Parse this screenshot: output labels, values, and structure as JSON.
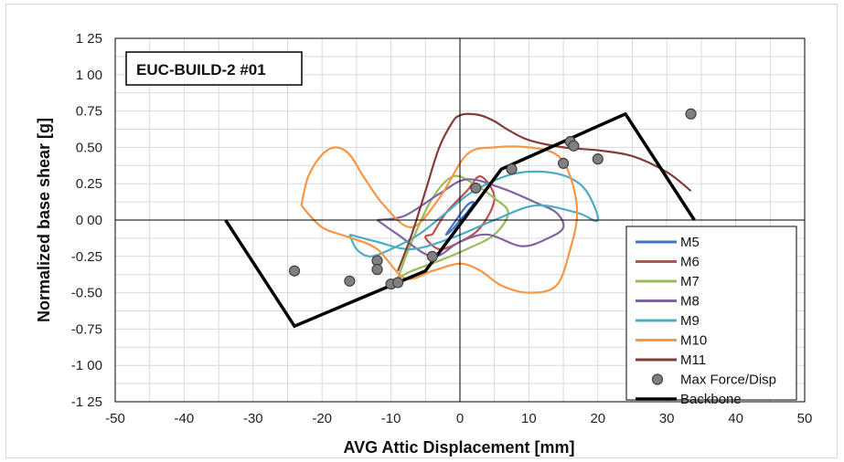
{
  "chart_data": {
    "type": "line",
    "title": "EUC-BUILD-2 #01",
    "xlabel": "AVG Attic Displacement [mm]",
    "ylabel": "Normalized base shear [g]",
    "xlim": [
      -50,
      50
    ],
    "ylim": [
      -1.25,
      1.25
    ],
    "x_ticks": [
      "-50",
      "-40",
      "-30",
      "-20",
      "-10",
      "0",
      "10",
      "20",
      "30",
      "40",
      "50"
    ],
    "y_ticks": [
      "1 25",
      "1 00",
      "0.75",
      "0.50",
      "0.25",
      "0 00",
      "-0.25",
      "-0.50",
      "-0.75",
      "-1 00",
      "-1 25"
    ],
    "grid": true,
    "legend_position": "bottom-right",
    "series": [
      {
        "name": "M5",
        "kind": "hysteresis",
        "color": "#4472c4",
        "x": [
          0,
          1,
          2,
          1,
          -1,
          -2,
          -1,
          0
        ],
        "y": [
          0,
          0.05,
          0.12,
          0.1,
          -0.03,
          -0.1,
          -0.06,
          0
        ]
      },
      {
        "name": "M6",
        "kind": "hysteresis",
        "color": "#c0504d",
        "x": [
          -4,
          -2,
          1,
          3,
          5,
          3,
          0,
          -3,
          -5,
          -4
        ],
        "y": [
          -0.1,
          0.05,
          0.2,
          0.3,
          0.15,
          -0.05,
          -0.15,
          -0.2,
          -0.12,
          -0.1
        ]
      },
      {
        "name": "M7",
        "kind": "hysteresis",
        "color": "#9bbb59",
        "x": [
          -9,
          -7,
          -4,
          -1,
          2,
          5,
          7,
          5,
          1,
          -3,
          -7,
          -9
        ],
        "y": [
          -0.4,
          -0.15,
          0.15,
          0.3,
          0.25,
          0.15,
          0.05,
          -0.1,
          -0.2,
          -0.28,
          -0.35,
          -0.4
        ]
      },
      {
        "name": "M8",
        "kind": "hysteresis",
        "color": "#8064a2",
        "x": [
          -12,
          -8,
          -3,
          1,
          6,
          11,
          14,
          15,
          13,
          9,
          4,
          0,
          -4,
          -9,
          -12
        ],
        "y": [
          0.0,
          0.03,
          0.18,
          0.28,
          0.22,
          0.12,
          0.05,
          -0.05,
          -0.12,
          -0.18,
          -0.1,
          -0.15,
          -0.25,
          -0.1,
          0.0
        ]
      },
      {
        "name": "M9",
        "kind": "hysteresis",
        "color": "#4bacc6",
        "x": [
          -16,
          -15,
          -13,
          -10,
          -6,
          -2,
          2,
          8,
          14,
          18,
          20,
          17,
          11,
          5,
          -1,
          -7,
          -12,
          -16
        ],
        "y": [
          -0.1,
          -0.2,
          -0.25,
          -0.2,
          -0.1,
          0.05,
          0.2,
          0.32,
          0.32,
          0.22,
          0.0,
          0.05,
          0.1,
          0.0,
          -0.12,
          -0.2,
          -0.15,
          -0.1
        ]
      },
      {
        "name": "M10",
        "kind": "hysteresis",
        "color": "#f79646",
        "x": [
          -23,
          -22,
          -20,
          -18,
          -16,
          -14,
          -11,
          -7,
          -3,
          1,
          5,
          10,
          14,
          16,
          17,
          16,
          14,
          10,
          6,
          3,
          0,
          -4,
          -8,
          -12,
          -16,
          -20,
          -23
        ],
        "y": [
          0.1,
          0.3,
          0.45,
          0.5,
          0.45,
          0.3,
          0.1,
          -0.05,
          0.15,
          0.45,
          0.5,
          0.5,
          0.45,
          0.3,
          0.05,
          -0.2,
          -0.45,
          -0.5,
          -0.45,
          -0.35,
          -0.3,
          -0.35,
          -0.4,
          -0.2,
          -0.12,
          -0.05,
          0.1
        ]
      },
      {
        "name": "M11",
        "kind": "hysteresis",
        "color": "#843c39",
        "x": [
          -9,
          -7,
          -5,
          -3,
          -1,
          0,
          1,
          3,
          5,
          7,
          10,
          15,
          20,
          25,
          30,
          33.5
        ],
        "y": [
          -0.35,
          -0.1,
          0.2,
          0.5,
          0.68,
          0.72,
          0.73,
          0.72,
          0.68,
          0.62,
          0.55,
          0.5,
          0.48,
          0.44,
          0.33,
          0.2
        ]
      },
      {
        "name": "Max Force/Disp",
        "kind": "scatter",
        "color": "#808080",
        "points": [
          [
            -24,
            -0.35
          ],
          [
            -16,
            -0.42
          ],
          [
            -12,
            -0.28
          ],
          [
            -12,
            -0.34
          ],
          [
            -10,
            -0.44
          ],
          [
            -9,
            -0.43
          ],
          [
            -4,
            -0.25
          ],
          [
            2.3,
            0.22
          ],
          [
            7.5,
            0.35
          ],
          [
            15,
            0.39
          ],
          [
            16,
            0.54
          ],
          [
            16.5,
            0.51
          ],
          [
            20,
            0.42
          ],
          [
            33.5,
            0.73
          ]
        ]
      },
      {
        "name": "Backbone",
        "kind": "line",
        "color": "#000000",
        "x": [
          -34,
          -24,
          -5,
          6,
          24,
          34
        ],
        "y": [
          0,
          -0.73,
          -0.35,
          0.35,
          0.73,
          0
        ]
      }
    ]
  }
}
